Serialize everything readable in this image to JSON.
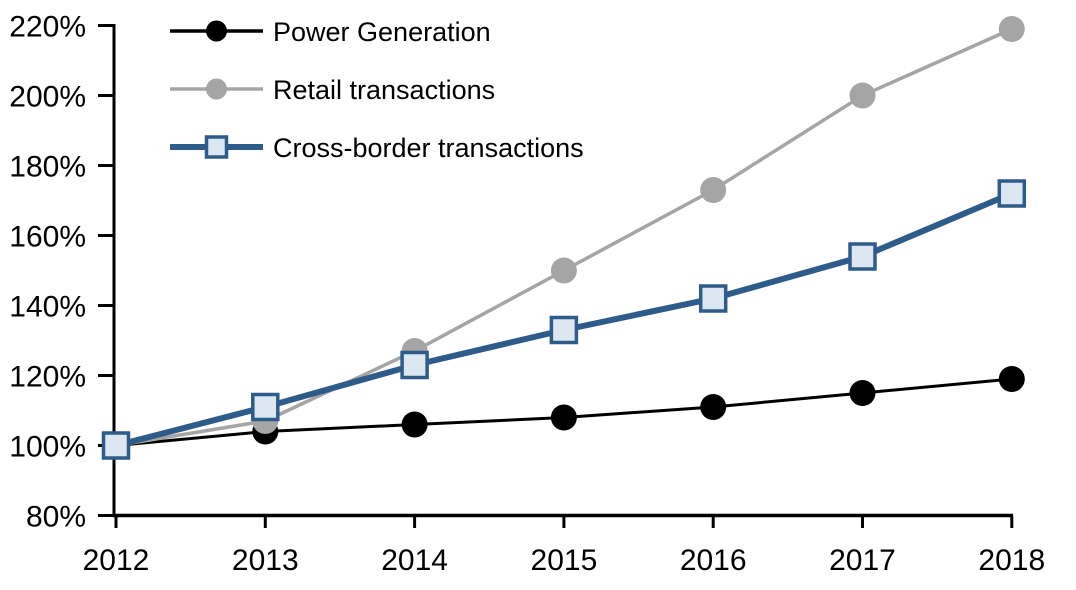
{
  "chart_data": {
    "type": "line",
    "x": [
      2012,
      2013,
      2014,
      2015,
      2016,
      2017,
      2018
    ],
    "x_axis": {
      "tick_labels": [
        "2012",
        "2013",
        "2014",
        "2015",
        "2016",
        "2017",
        "2018"
      ]
    },
    "y_axis": {
      "tick_labels": [
        "80%",
        "100%",
        "120%",
        "140%",
        "160%",
        "180%",
        "200%",
        "220%"
      ],
      "min": 80,
      "max": 220,
      "step": 20,
      "unit": "%"
    },
    "grid": false,
    "legend": {
      "position": "top-left"
    },
    "series": [
      {
        "name": "Power Generation",
        "values": [
          100,
          104,
          106,
          108,
          111,
          115,
          119
        ],
        "color": "#000000",
        "line_width": 3,
        "marker": "circle",
        "marker_fill": "#000000",
        "marker_size": 26
      },
      {
        "name": "Retail transactions",
        "values": [
          100,
          107,
          127,
          150,
          173,
          200,
          219
        ],
        "color": "#A5A5A5",
        "line_width": 3.5,
        "marker": "circle",
        "marker_fill": "#A5A5A5",
        "marker_size": 26
      },
      {
        "name": "Cross-border transactions",
        "values": [
          100,
          111,
          123,
          133,
          142,
          154,
          172
        ],
        "color": "#2D5C8A",
        "line_width": 6,
        "marker": "square",
        "marker_fill": "#DCE7F2",
        "marker_size": 25
      }
    ]
  }
}
